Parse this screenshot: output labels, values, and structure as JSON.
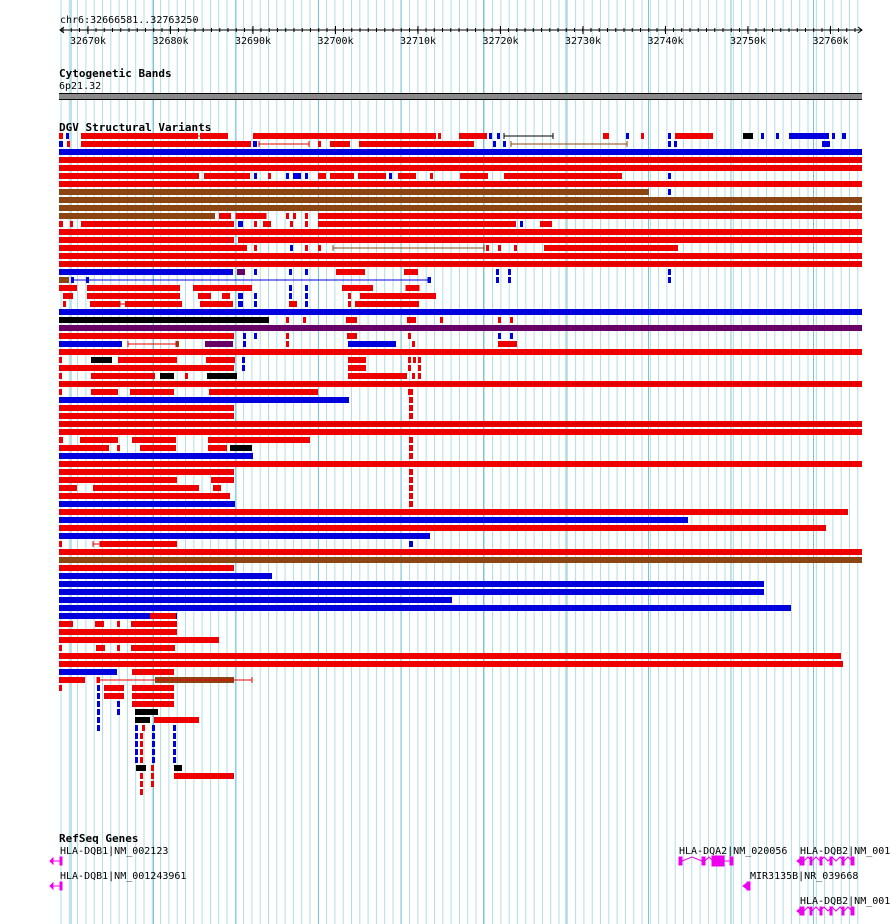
{
  "location": "chr6:32666581..32763250",
  "ruler_ticks": [
    "32670k",
    "32680k",
    "32690k",
    "32700k",
    "32710k",
    "32720k",
    "32730k",
    "32740k",
    "32750k",
    "32760k"
  ],
  "tracks": {
    "cytogenetic": {
      "title": "Cytogenetic Bands",
      "band": "6p21.32"
    },
    "dgv": {
      "title": "DGV Structural Variants"
    },
    "refseq": {
      "title": "RefSeq Genes"
    }
  },
  "genes": [
    {
      "label": "HLA-DQB1|NM_002123"
    },
    {
      "label": "HLA-DQB1|NM_001243961"
    },
    {
      "label": "HLA-DQA2|NM_020056"
    },
    {
      "label": "HLA-DQB2|NM_001"
    },
    {
      "label": "MIR3135B|NR_039668"
    },
    {
      "label": "HLA-DQB2|NM_001"
    }
  ],
  "colors": {
    "gain": "#ee0000",
    "loss": "#0000dd",
    "inversion": "#8b4513",
    "complex": "#000000",
    "gain_loss": "#660066",
    "gene": "#ee00ee",
    "grid": "#b0dde8"
  }
}
